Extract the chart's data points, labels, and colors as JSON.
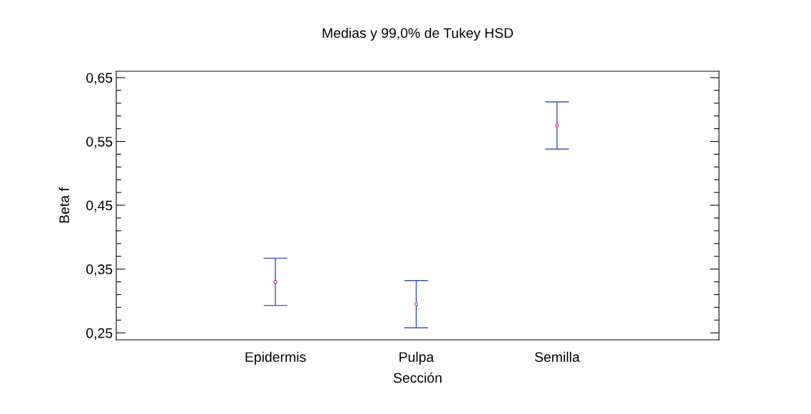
{
  "chart_data": {
    "type": "scatter",
    "title": "Medias y 99,0% de Tukey HSD",
    "xlabel": "Sección",
    "ylabel": "Beta f",
    "categories": [
      "Epidermis",
      "Pulpa",
      "Semilla"
    ],
    "series": [
      {
        "color": "#3a4fb0",
        "colors": [
          "#c0306a",
          "#c0306a",
          "#c0306a"
        ],
        "values": [
          0.33,
          0.295,
          0.575
        ],
        "errors": [
          0.037,
          0.037,
          0.037
        ]
      }
    ],
    "marker": "circle",
    "grid": false,
    "legend": false,
    "ylim": [
      0.239,
      0.66
    ],
    "yticks": [
      {
        "value": 0.25,
        "label": "0,25"
      },
      {
        "value": 0.27,
        "label": null
      },
      {
        "value": 0.29,
        "label": null
      },
      {
        "value": 0.31,
        "label": null
      },
      {
        "value": 0.33,
        "label": null
      },
      {
        "value": 0.35,
        "label": "0,35"
      },
      {
        "value": 0.37,
        "label": null
      },
      {
        "value": 0.39,
        "label": null
      },
      {
        "value": 0.41,
        "label": null
      },
      {
        "value": 0.43,
        "label": null
      },
      {
        "value": 0.45,
        "label": "0,45"
      },
      {
        "value": 0.47,
        "label": null
      },
      {
        "value": 0.49,
        "label": null
      },
      {
        "value": 0.51,
        "label": null
      },
      {
        "value": 0.53,
        "label": null
      },
      {
        "value": 0.55,
        "label": "0,55"
      },
      {
        "value": 0.57,
        "label": null
      },
      {
        "value": 0.59,
        "label": null
      },
      {
        "value": 0.61,
        "label": null
      },
      {
        "value": 0.63,
        "label": null
      },
      {
        "value": 0.65,
        "label": "0,65"
      }
    ]
  }
}
